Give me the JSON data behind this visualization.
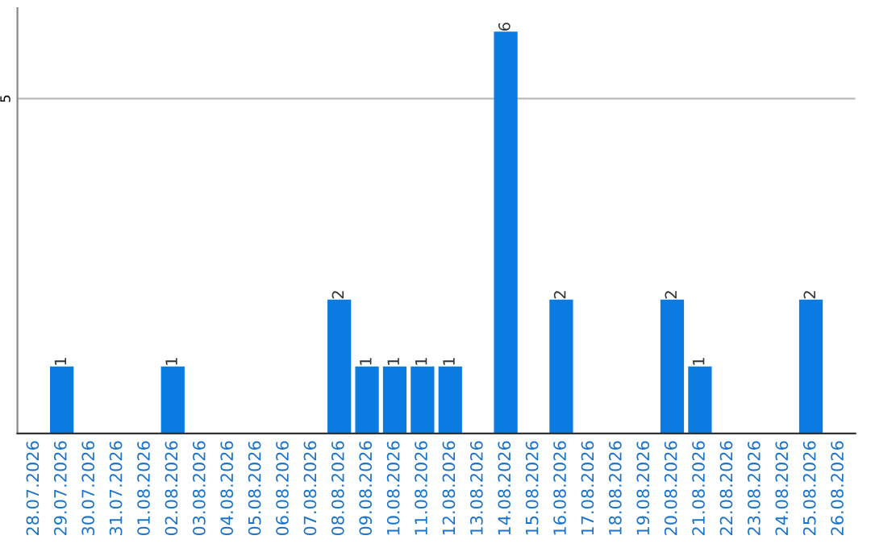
{
  "chart_data": {
    "type": "bar",
    "categories": [
      "28.07.2026",
      "29.07.2026",
      "30.07.2026",
      "31.07.2026",
      "01.08.2026",
      "02.08.2026",
      "03.08.2026",
      "04.08.2026",
      "05.08.2026",
      "06.08.2026",
      "07.08.2026",
      "08.08.2026",
      "09.08.2026",
      "10.08.2026",
      "11.08.2026",
      "12.08.2026",
      "13.08.2026",
      "14.08.2026",
      "15.08.2026",
      "16.08.2026",
      "17.08.2026",
      "18.08.2026",
      "19.08.2026",
      "20.08.2026",
      "21.08.2026",
      "22.08.2026",
      "23.08.2026",
      "24.08.2026",
      "25.08.2026",
      "26.08.2026"
    ],
    "values": [
      0,
      1,
      0,
      0,
      0,
      1,
      0,
      0,
      0,
      0,
      0,
      2,
      1,
      1,
      1,
      1,
      0,
      6,
      0,
      2,
      0,
      0,
      0,
      2,
      1,
      0,
      0,
      0,
      2,
      0
    ],
    "value_labels": [
      null,
      "1",
      null,
      null,
      null,
      "1",
      null,
      null,
      null,
      null,
      null,
      "2",
      "1",
      "1",
      "1",
      "1",
      null,
      "6",
      null,
      "2",
      null,
      null,
      null,
      "2",
      "1",
      null,
      null,
      null,
      "2",
      null
    ],
    "color": "#0a7be0",
    "ylim": [
      0,
      6.35
    ],
    "yticks": [
      5
    ],
    "grid": "y"
  }
}
